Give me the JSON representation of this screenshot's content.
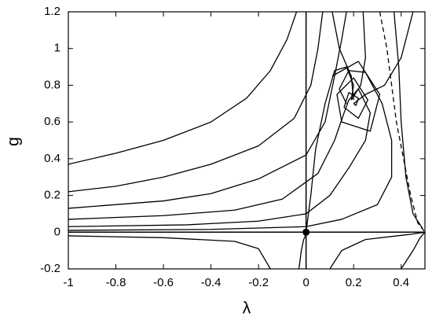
{
  "chart_data": {
    "type": "line",
    "xlabel": "λ",
    "ylabel": "g",
    "xlim": [
      -1,
      0.5
    ],
    "ylim": [
      -0.2,
      1.2
    ],
    "xticks": [
      -1,
      -0.8,
      -0.6,
      -0.4,
      -0.2,
      0,
      0.2,
      0.4
    ],
    "yticks": [
      -0.2,
      0,
      0.2,
      0.4,
      0.6,
      0.8,
      1,
      1.2
    ],
    "series": [
      {
        "color": "#000000",
        "x": [
          -1,
          -0.8,
          -0.6,
          -0.4,
          -0.25,
          -0.15,
          -0.08,
          -0.04
        ],
        "values": [
          0.37,
          0.43,
          0.5,
          0.6,
          0.73,
          0.88,
          1.05,
          1.2
        ]
      },
      {
        "color": "#000000",
        "x": [
          -1,
          -0.8,
          -0.6,
          -0.4,
          -0.2,
          -0.05,
          0.02,
          0.05,
          0.07
        ],
        "values": [
          0.22,
          0.25,
          0.3,
          0.37,
          0.47,
          0.62,
          0.8,
          1.0,
          1.2
        ]
      },
      {
        "color": "#000000",
        "x": [
          -1,
          -0.6,
          -0.4,
          -0.2,
          0,
          0.08,
          0.12,
          0.15,
          0.17
        ],
        "values": [
          0.13,
          0.17,
          0.21,
          0.29,
          0.42,
          0.6,
          0.85,
          1.05,
          1.2
        ]
      },
      {
        "color": "#000000",
        "x": [
          -1,
          -0.6,
          -0.3,
          -0.1,
          0.05,
          0.12,
          0.16,
          0.18
        ],
        "values": [
          0.07,
          0.09,
          0.12,
          0.18,
          0.32,
          0.5,
          0.65,
          0.72
        ]
      },
      {
        "color": "#000000",
        "x": [
          -1,
          -0.5,
          -0.2,
          0,
          0.1,
          0.18,
          0.25,
          0.27,
          0.22,
          0.18
        ],
        "values": [
          0.03,
          0.04,
          0.06,
          0.1,
          0.2,
          0.35,
          0.5,
          0.65,
          0.78,
          0.72
        ]
      },
      {
        "color": "#000000",
        "x": [
          -1,
          -0.4,
          0,
          0.15,
          0.3,
          0.36,
          0.36,
          0.32,
          0.25,
          0.18,
          0.14,
          0.17
        ],
        "values": [
          0.01,
          0.015,
          0.03,
          0.07,
          0.15,
          0.3,
          0.5,
          0.7,
          0.87,
          0.88,
          0.78,
          0.7
        ]
      },
      {
        "color": "#000000",
        "x": [
          -1,
          -0.6,
          -0.3,
          -0.2,
          -0.15
        ],
        "values": [
          -0.02,
          -0.03,
          -0.05,
          -0.09,
          -0.2
        ]
      },
      {
        "color": "#000000",
        "x": [
          -0.03,
          -0.02,
          -0.01,
          0
        ],
        "values": [
          -0.2,
          -0.1,
          -0.04,
          -0.01
        ]
      },
      {
        "color": "#000000",
        "x": [
          0.1,
          0.15,
          0.25,
          0.45,
          0.5
        ],
        "values": [
          -0.2,
          -0.1,
          -0.04,
          -0.01,
          0
        ]
      },
      {
        "color": "#000000",
        "x": [
          0.4,
          0.45,
          0.48,
          0.5
        ],
        "values": [
          -0.2,
          -0.1,
          -0.03,
          0
        ]
      },
      {
        "color": "#000000",
        "x": [
          0,
          0.02,
          0.04,
          0.08,
          0.12,
          0.17,
          0.2,
          0.19
        ],
        "values": [
          0,
          0.2,
          0.45,
          0.7,
          0.88,
          0.9,
          0.8,
          0.72
        ]
      },
      {
        "color": "#000000",
        "x": [
          0.49,
          0.45,
          0.42,
          0.4,
          0.39,
          0.37
        ],
        "values": [
          0.02,
          0.1,
          0.3,
          0.6,
          0.9,
          1.2
        ]
      },
      {
        "color": "#000000",
        "x": [
          0.45,
          0.4,
          0.33,
          0.25,
          0.2
        ],
        "values": [
          1.2,
          0.95,
          0.8,
          0.75,
          0.7
        ]
      },
      {
        "color": "#000000",
        "x": [
          0.24,
          0.25,
          0.23,
          0.19
        ],
        "values": [
          1.2,
          0.95,
          0.8,
          0.72
        ]
      },
      {
        "color": "#000000",
        "x": [
          0.11,
          0.14,
          0.19,
          0.2
        ],
        "values": [
          1.2,
          1.0,
          0.85,
          0.72
        ]
      },
      {
        "color": "#000000",
        "x": [
          0.2,
          0.21,
          0.22,
          0.18,
          0.16,
          0.22,
          0.26,
          0.2,
          0.13,
          0.15,
          0.27,
          0.31,
          0.22,
          0.11
        ],
        "values": [
          0.7,
          0.69,
          0.73,
          0.76,
          0.68,
          0.62,
          0.72,
          0.84,
          0.75,
          0.6,
          0.55,
          0.75,
          0.93,
          0.85
        ]
      },
      {
        "color": "#000000",
        "dash": true,
        "x": [
          0.31,
          0.34,
          0.36,
          0.38,
          0.41,
          0.44,
          0.47,
          0.5
        ],
        "values": [
          1.2,
          1.0,
          0.8,
          0.6,
          0.4,
          0.2,
          0.05,
          0
        ]
      },
      {
        "color": "#000000",
        "marker": true,
        "x": [
          0
        ],
        "values": [
          0
        ]
      }
    ]
  }
}
